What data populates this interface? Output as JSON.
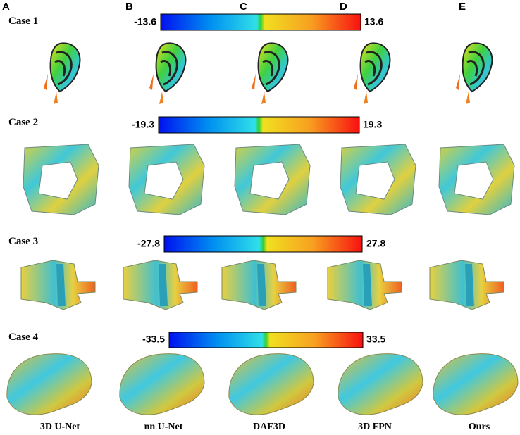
{
  "panels": [
    "A",
    "B",
    "C",
    "D",
    "E"
  ],
  "cases": [
    {
      "label": "Case  1",
      "min": "-13.6",
      "max": "13.6"
    },
    {
      "label": "Case  2",
      "min": "-19.3",
      "max": "19.3"
    },
    {
      "label": "Case  3",
      "min": "-27.8",
      "max": "27.8"
    },
    {
      "label": "Case  4",
      "min": "-33.5",
      "max": "33.5"
    }
  ],
  "methods": [
    "3D U-Net",
    "nn U-Net",
    "DAF3D",
    "3D FPN",
    "Ours"
  ]
}
